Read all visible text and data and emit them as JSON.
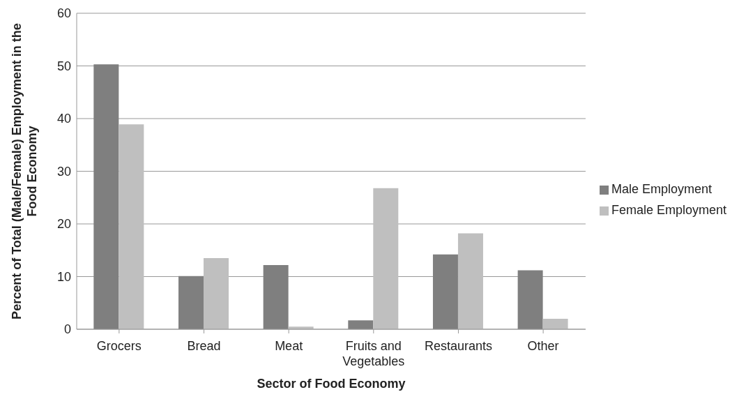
{
  "chart_data": {
    "type": "bar",
    "xlabel": "Sector of Food Economy",
    "ylabel": "Percent of Total (Male/Female) Employment in the Food Economy",
    "categories": [
      "Grocers",
      "Bread",
      "Meat",
      "Fruits and Vegetables",
      "Restaurants",
      "Other"
    ],
    "series": [
      {
        "name": "Male Employment",
        "color": "#7f7f7f",
        "values": [
          50.3,
          10.1,
          12.2,
          1.7,
          14.2,
          11.2
        ]
      },
      {
        "name": "Female Employment",
        "color": "#bfbfbf",
        "values": [
          38.9,
          13.5,
          0.5,
          26.8,
          18.2,
          2.0
        ]
      }
    ],
    "ylim": [
      0,
      60
    ],
    "yticks": [
      0,
      10,
      20,
      30,
      40,
      50,
      60
    ],
    "grid": "y",
    "legend": "right"
  }
}
